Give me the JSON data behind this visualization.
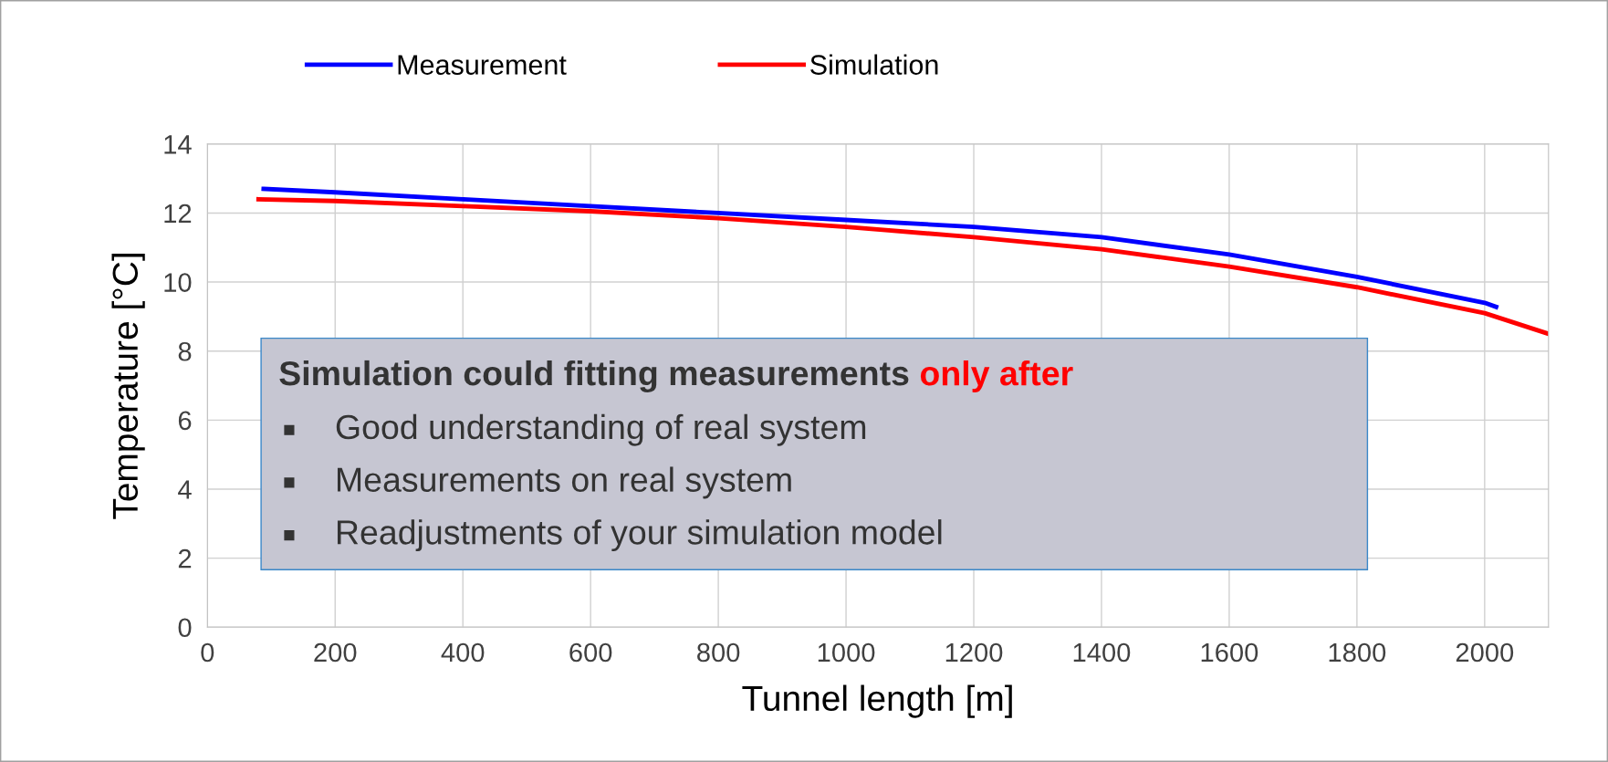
{
  "chart_data": {
    "type": "line",
    "xlabel": "Tunnel length [m]",
    "ylabel": "Temperature [°C]",
    "xlim": [
      0,
      2100
    ],
    "xticks": [
      0,
      200,
      400,
      600,
      800,
      1000,
      1200,
      1400,
      1600,
      1800,
      2000
    ],
    "ylim": [
      0,
      14
    ],
    "yticks": [
      0,
      2,
      4,
      6,
      8,
      10,
      12,
      14
    ],
    "grid": true,
    "legend": "top",
    "line_style": "solid",
    "series": [
      {
        "name": "Measurement",
        "color": "#0000ff",
        "x": [
          88,
          200,
          400,
          600,
          800,
          1000,
          1200,
          1400,
          1600,
          1800,
          2000,
          2018
        ],
        "values": [
          12.7,
          12.6,
          12.4,
          12.2,
          12.0,
          11.8,
          11.6,
          11.3,
          10.8,
          10.15,
          9.4,
          9.28
        ]
      },
      {
        "name": "Simulation",
        "color": "#ff0000",
        "x": [
          80,
          200,
          400,
          600,
          800,
          1000,
          1200,
          1400,
          1600,
          1800,
          2000,
          2100
        ],
        "values": [
          12.4,
          12.35,
          12.2,
          12.05,
          11.85,
          11.6,
          11.3,
          10.95,
          10.45,
          9.85,
          9.1,
          8.5
        ]
      }
    ],
    "annotations": [
      "Simulation could fitting measurements",
      "only after",
      "Good understanding of real system",
      "Measurements on real system",
      "Readjustments of your simulation model"
    ]
  }
}
